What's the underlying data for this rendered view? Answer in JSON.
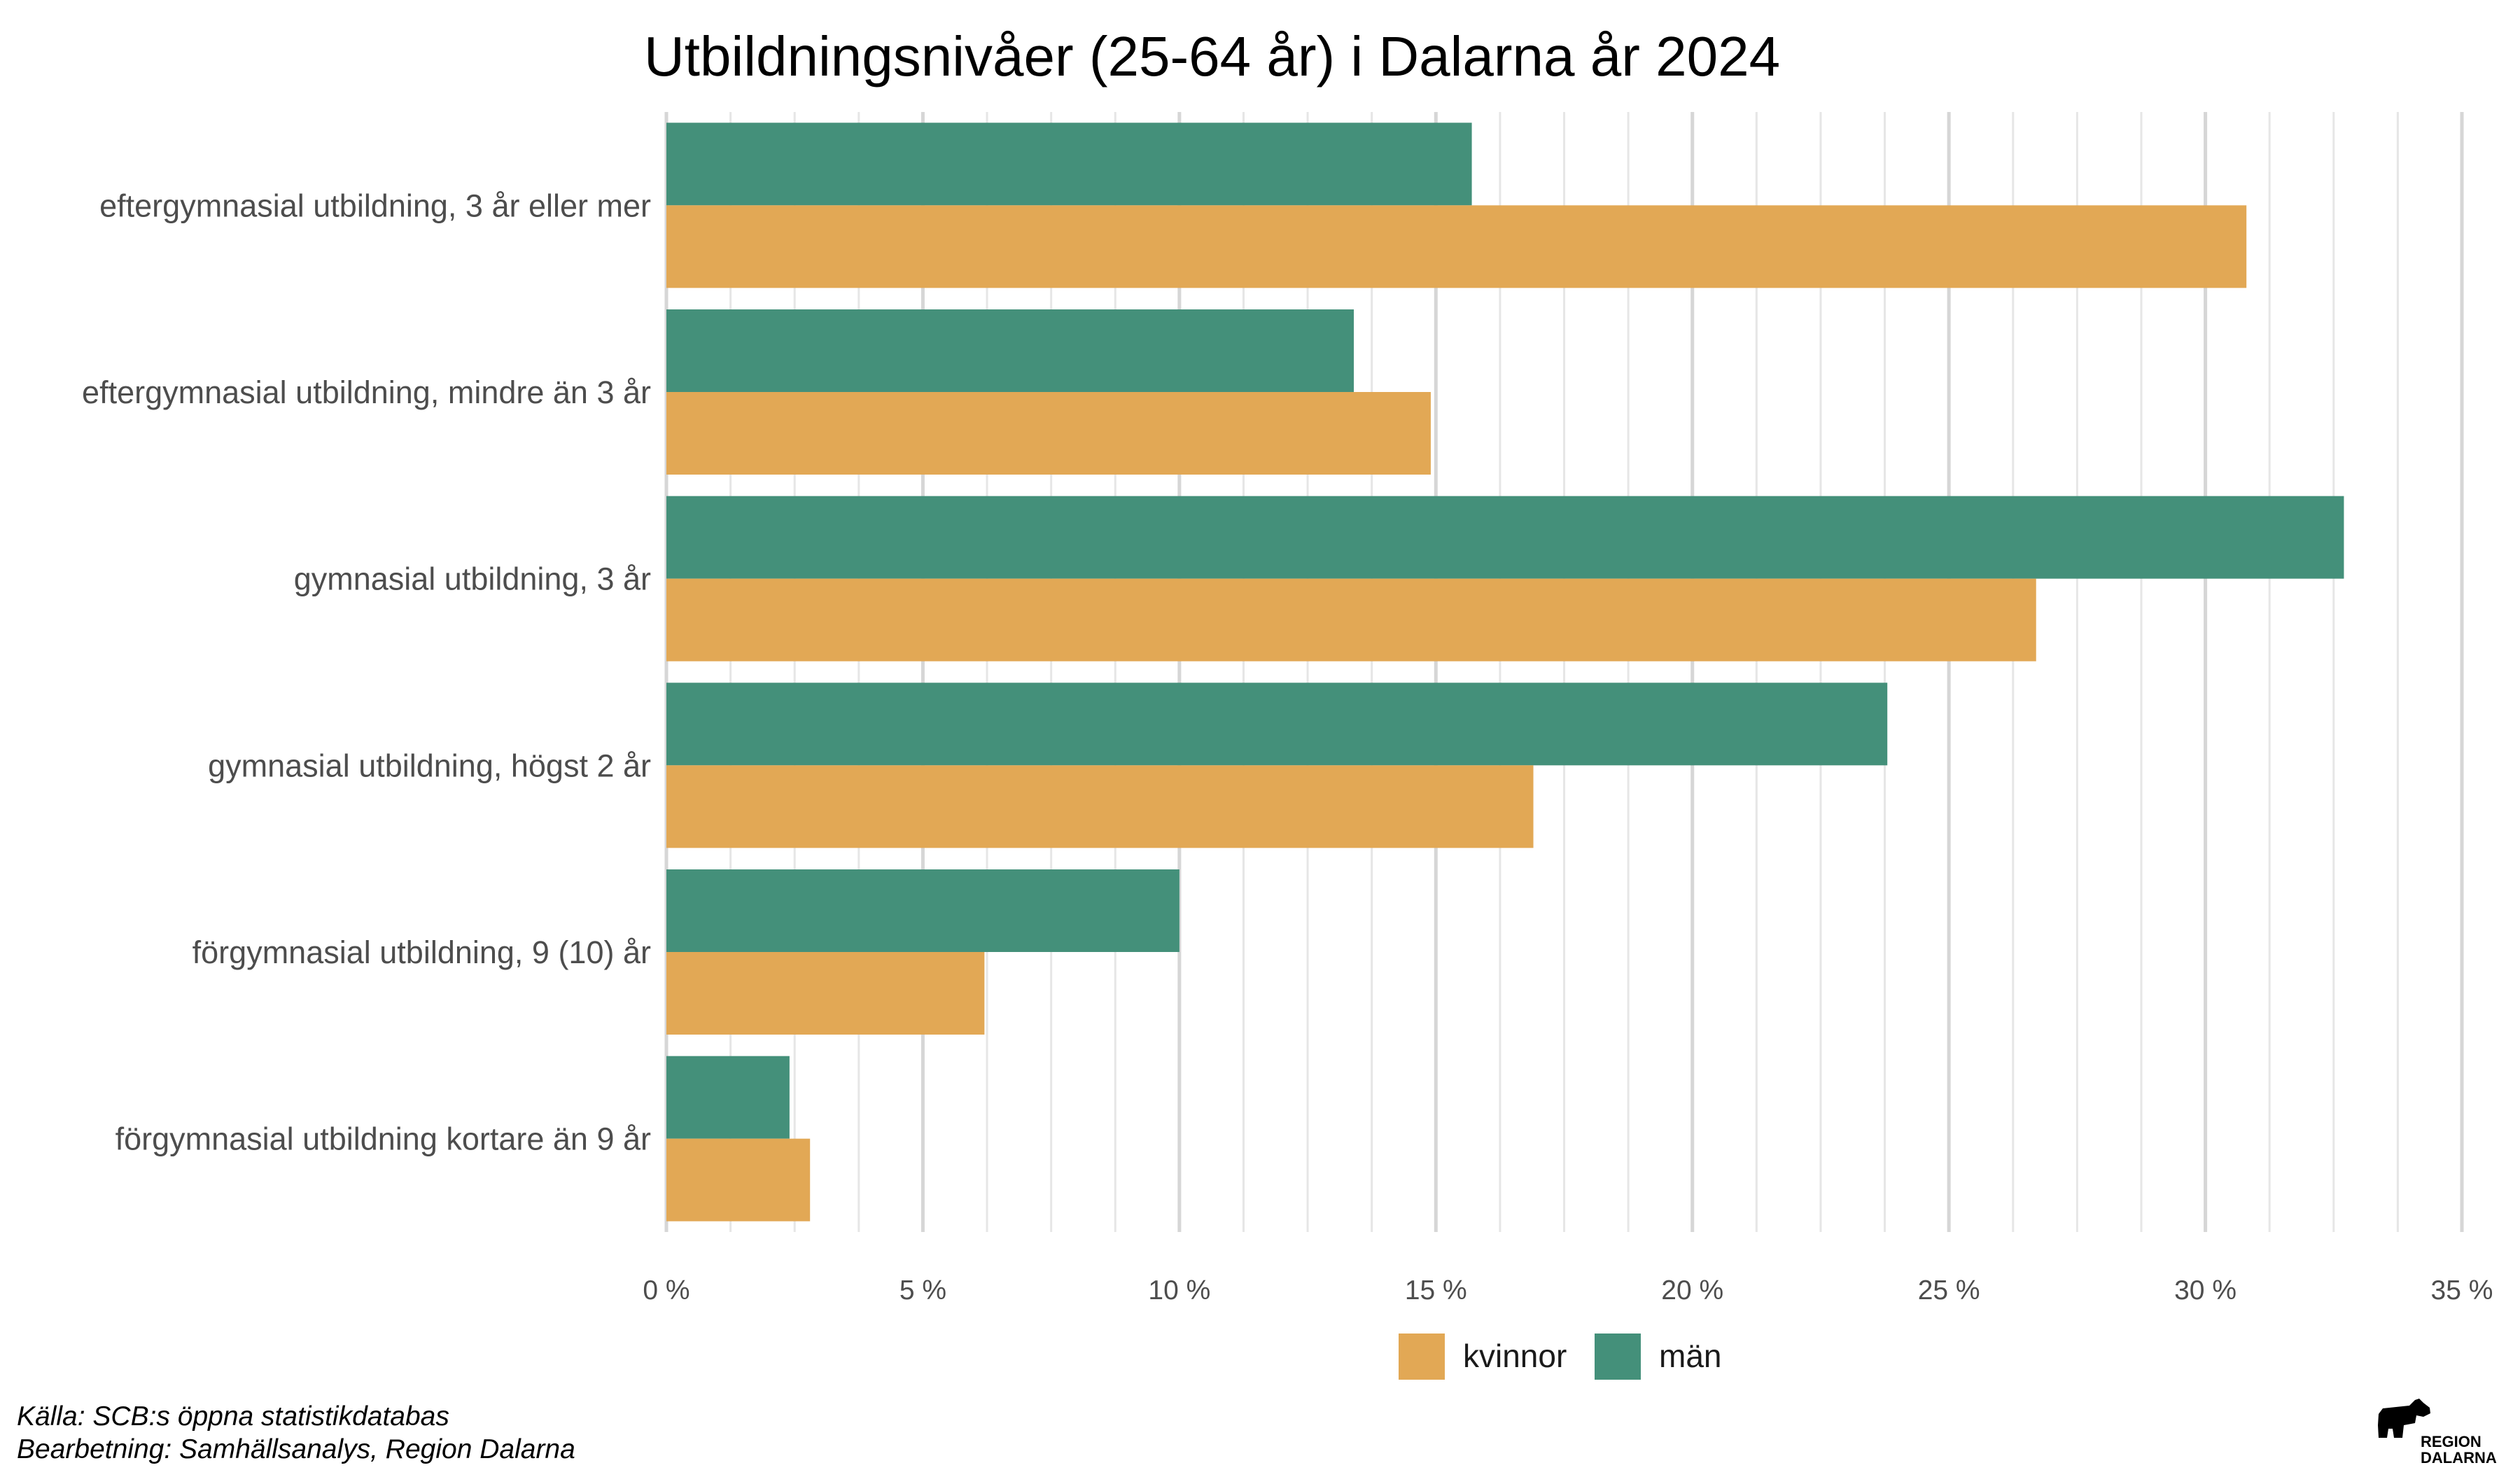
{
  "chart_data": {
    "type": "bar",
    "orientation": "horizontal",
    "title": "Utbildningsnivåer (25-64 år) i Dalarna år 2024",
    "categories": [
      "eftergymnasial utbildning, 3 år eller mer",
      "eftergymnasial utbildning, mindre än 3 år",
      "gymnasial utbildning, 3 år",
      "gymnasial utbildning, högst 2 år",
      "förgymnasial utbildning, 9 (10) år",
      "förgymnasial utbildning kortare än 9 år"
    ],
    "series": [
      {
        "name": "män",
        "color": "#44907a",
        "values": [
          15.7,
          13.4,
          32.7,
          23.8,
          10.0,
          2.4
        ]
      },
      {
        "name": "kvinnor",
        "color": "#e2a855",
        "values": [
          30.8,
          14.9,
          26.7,
          16.9,
          6.2,
          2.8
        ]
      }
    ],
    "xlim": [
      0,
      35
    ],
    "x_ticks": [
      0,
      5,
      10,
      15,
      20,
      25,
      30,
      35
    ],
    "x_tick_labels": [
      "0 %",
      "5 %",
      "10 %",
      "15 %",
      "20 %",
      "25 %",
      "30 %",
      "35 %"
    ],
    "xlabel": "",
    "ylabel": "",
    "grid": "vertical",
    "legend": {
      "position": "bottom",
      "entries": [
        {
          "label": "kvinnor",
          "color": "#e2a855"
        },
        {
          "label": "män",
          "color": "#44907a"
        }
      ]
    },
    "caption": [
      "Källa: SCB:s öppna statistikdatabas",
      "Bearbetning: Samhällsanalys, Region Dalarna"
    ]
  },
  "logo": {
    "line1": "REGION",
    "line2": "DALARNA"
  }
}
